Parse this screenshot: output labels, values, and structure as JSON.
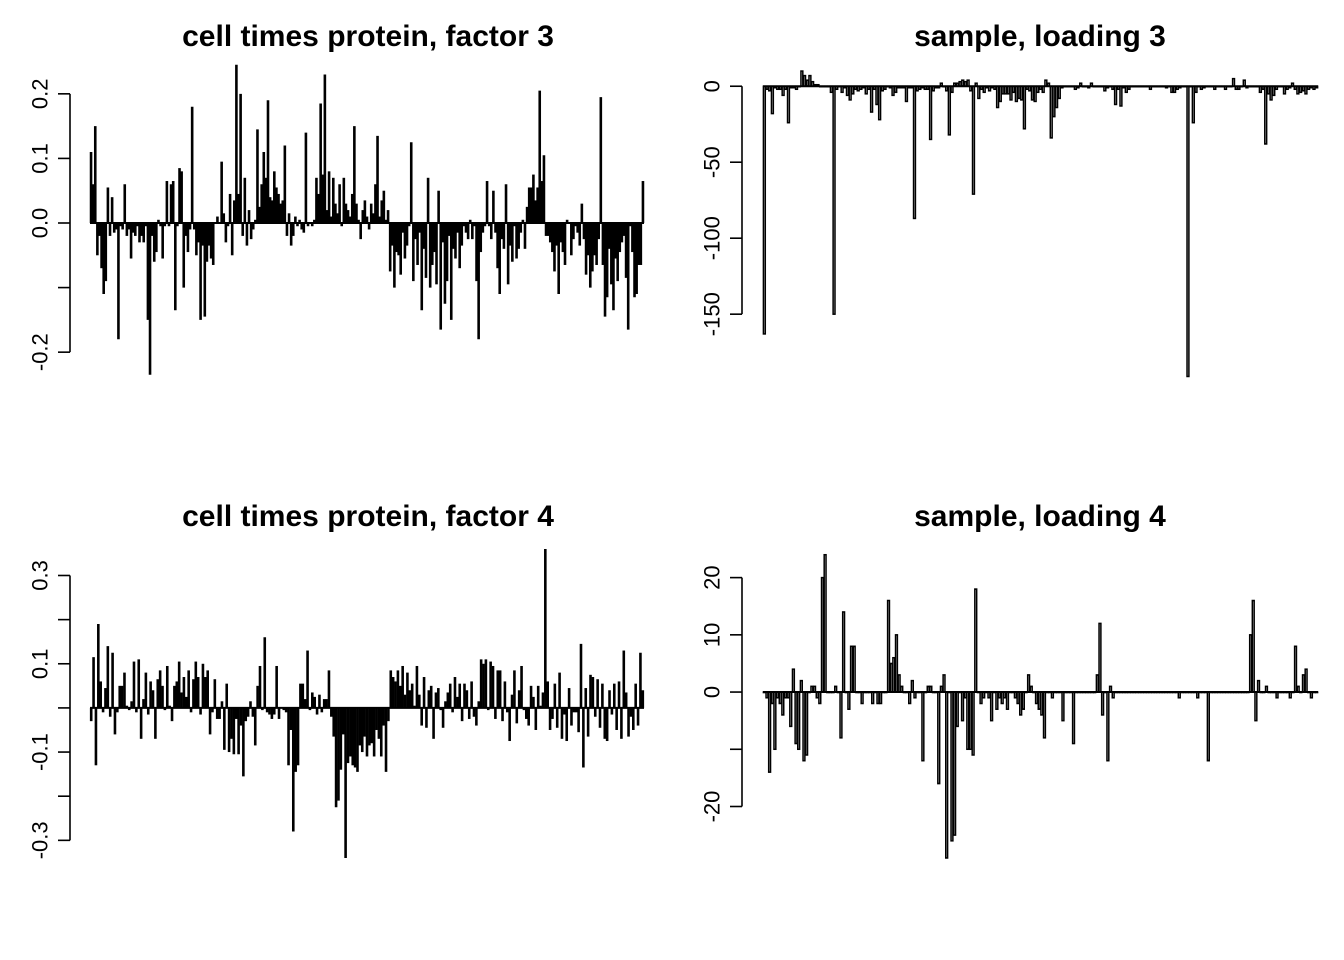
{
  "chart_data": [
    {
      "type": "bar",
      "title": "cell times protein, factor 3",
      "xlabel": "",
      "ylabel": "",
      "ylim": [
        -0.24,
        0.24
      ],
      "yticks": [
        -0.2,
        -0.1,
        0.0,
        0.1,
        0.2
      ],
      "ytick_labels": [
        "-0.2",
        "",
        "0.0",
        "0.1",
        "0.2"
      ],
      "grid": false,
      "values": [
        0.11,
        0.06,
        0.15,
        -0.05,
        -0.02,
        -0.07,
        -0.11,
        -0.09,
        0.055,
        -0.02,
        0.04,
        -0.015,
        -0.01,
        -0.18,
        -0.005,
        -0.01,
        0.06,
        -0.02,
        -0.01,
        -0.055,
        -0.015,
        -0.02,
        -0.005,
        -0.03,
        -0.02,
        -0.03,
        -0.005,
        -0.15,
        -0.235,
        -0.02,
        -0.06,
        -0.045,
        0.005,
        -0.005,
        -0.055,
        -0.005,
        0.065,
        -0.005,
        0.06,
        0.065,
        -0.135,
        -0.005,
        0.085,
        0.08,
        -0.1,
        -0.02,
        -0.045,
        -0.01,
        0.18,
        -0.01,
        -0.05,
        -0.03,
        -0.15,
        -0.035,
        -0.145,
        -0.06,
        -0.035,
        -0.055,
        -0.065,
        0.0,
        0.01,
        0.0,
        0.095,
        0.015,
        -0.03,
        -0.005,
        0.045,
        -0.05,
        0.035,
        0.245,
        0.045,
        0.2,
        -0.02,
        0.07,
        -0.035,
        0.02,
        -0.025,
        -0.01,
        0.005,
        0.145,
        0.025,
        0.06,
        0.11,
        0.07,
        0.19,
        0.04,
        0.035,
        0.08,
        0.055,
        0.045,
        0.03,
        0.035,
        0.12,
        -0.02,
        0.015,
        -0.035,
        -0.02,
        0.01,
        -0.005,
        0.005,
        -0.01,
        -0.015,
        0.14,
        -0.005,
        0.0,
        -0.005,
        0.005,
        0.07,
        0.045,
        0.185,
        0.075,
        0.23,
        0.02,
        0.08,
        0.01,
        0.07,
        0.03,
        0.015,
        0.06,
        -0.005,
        0.07,
        0.03,
        0.02,
        0.01,
        0.045,
        0.15,
        0.03,
        0.005,
        -0.025,
        0.02,
        0.035,
        0.01,
        -0.01,
        0.03,
        0.015,
        0.06,
        0.135,
        0.01,
        0.035,
        0.05,
        0.005,
        0.02,
        -0.075,
        -0.035,
        -0.1,
        -0.045,
        -0.05,
        -0.08,
        -0.015,
        -0.055,
        -0.035,
        -0.005,
        0.125,
        -0.09,
        -0.025,
        -0.065,
        -0.015,
        -0.135,
        -0.04,
        -0.085,
        0.07,
        -0.1,
        -0.065,
        -0.045,
        -0.095,
        0.05,
        -0.165,
        -0.03,
        -0.125,
        -0.09,
        -0.02,
        -0.15,
        -0.04,
        -0.055,
        -0.015,
        -0.07,
        -0.035,
        -0.005,
        -0.015,
        -0.025,
        0.005,
        -0.025,
        -0.005,
        -0.09,
        -0.18,
        -0.045,
        -0.015,
        -0.005,
        0.065,
        -0.005,
        -0.025,
        0.05,
        -0.015,
        -0.07,
        -0.11,
        -0.025,
        -0.04,
        0.06,
        -0.095,
        -0.035,
        -0.06,
        -0.005,
        -0.055,
        -0.04,
        -0.015,
        0.005,
        -0.04,
        0.025,
        0.055,
        0.055,
        0.075,
        0.035,
        0.055,
        0.205,
        0.065,
        0.105,
        -0.02,
        -0.02,
        -0.03,
        -0.045,
        -0.075,
        -0.035,
        -0.11,
        -0.03,
        -0.045,
        -0.065,
        0.005,
        0.0,
        -0.05,
        -0.025,
        -0.005,
        -0.015,
        -0.035,
        0.03,
        -0.025,
        -0.08,
        -0.05,
        -0.1,
        -0.075,
        -0.05,
        -0.065,
        -0.025,
        0.195,
        -0.065,
        -0.145,
        -0.115,
        -0.04,
        -0.095,
        -0.135,
        -0.055,
        -0.09,
        -0.045,
        -0.03,
        -0.02,
        -0.085,
        -0.165,
        -0.005,
        -0.045,
        -0.115,
        -0.11,
        -0.065,
        -0.065,
        0.065
      ]
    },
    {
      "type": "bar",
      "title": "sample, loading 3",
      "xlabel": "",
      "ylabel": "",
      "ylim": [
        -192,
        12
      ],
      "yticks": [
        -150,
        -100,
        -50,
        0
      ],
      "ytick_labels": [
        "-150",
        "-100",
        "-50",
        "0"
      ],
      "grid": false,
      "values": [
        -163,
        -2,
        -3,
        -18,
        -1,
        -2,
        -2,
        -6,
        -2,
        -24,
        -1,
        -1,
        -2,
        0,
        10,
        7,
        4,
        7,
        3,
        1,
        1,
        0,
        0,
        0,
        0,
        -4,
        -150,
        -2,
        0,
        -4,
        -1,
        -6,
        -9,
        -5,
        -2,
        -3,
        -2,
        -1,
        -5,
        -2,
        -17,
        -2,
        -12,
        -22,
        -3,
        -2,
        0,
        -1,
        -6,
        -4,
        -1,
        -1,
        -1,
        -10,
        -1,
        -1,
        -87,
        -3,
        -2,
        -1,
        -2,
        -2,
        -35,
        -3,
        -1,
        -1,
        2,
        0,
        -3,
        -32,
        -4,
        2,
        2,
        3,
        4,
        3,
        4,
        -3,
        -71,
        2,
        -8,
        -2,
        -4,
        -1,
        -3,
        -1,
        -2,
        -14,
        -10,
        -5,
        -5,
        -5,
        -9,
        -4,
        -10,
        -8,
        -9,
        -28,
        -2,
        -3,
        -9,
        -10,
        -4,
        -2,
        -4,
        4,
        2,
        -34,
        -20,
        -14,
        -8,
        -1,
        0,
        0,
        0,
        0,
        -2,
        -1,
        2,
        0,
        0,
        -1,
        2,
        0,
        0,
        0,
        0,
        -3,
        -1,
        0,
        -2,
        -12,
        -2,
        -13,
        -1,
        -4,
        -2,
        0,
        0,
        0,
        0,
        0,
        0,
        0,
        -2,
        0,
        0,
        0,
        0,
        0,
        -1,
        0,
        -4,
        -4,
        -2,
        -1,
        0,
        0,
        -191,
        0,
        -24,
        -4,
        0,
        -2,
        -1,
        0,
        0,
        0,
        -2,
        0,
        0,
        0,
        -2,
        0,
        0,
        5,
        -2,
        -2,
        0,
        4,
        -1,
        0,
        0,
        0,
        0,
        -4,
        -2,
        -38,
        -5,
        -9,
        -6,
        -2,
        0,
        0,
        -5,
        -2,
        -1,
        2,
        -2,
        -5,
        -4,
        -3,
        -5,
        -2,
        -1,
        -2,
        -1
      ]
    },
    {
      "type": "bar",
      "title": "cell times protein, factor 4",
      "xlabel": "",
      "ylabel": "",
      "ylim": [
        -0.34,
        0.36
      ],
      "yticks": [
        -0.3,
        -0.2,
        -0.1,
        0.0,
        0.1,
        0.2,
        0.3
      ],
      "ytick_labels": [
        "-0.3",
        "",
        "-0.1",
        "",
        "0.1",
        "",
        "0.3"
      ],
      "grid": false,
      "values": [
        -0.03,
        0.115,
        -0.13,
        0.19,
        0.06,
        -0.01,
        0.045,
        0.14,
        -0.02,
        0.125,
        -0.06,
        -0.01,
        0.05,
        0.05,
        0.08,
        0.005,
        -0.005,
        0.015,
        0.105,
        -0.01,
        0.11,
        -0.07,
        0.02,
        0.08,
        -0.015,
        0.06,
        0.04,
        -0.07,
        0.065,
        0.085,
        0.05,
        -0.005,
        0.095,
        0.005,
        -0.03,
        0.05,
        0.06,
        0.105,
        0.035,
        0.07,
        0.025,
        0.085,
        -0.01,
        0.065,
        0.105,
        0.07,
        -0.015,
        0.1,
        0.07,
        0.085,
        -0.06,
        -0.01,
        0.065,
        -0.025,
        -0.025,
        0.015,
        -0.095,
        0.055,
        -0.1,
        -0.07,
        -0.105,
        -0.025,
        -0.105,
        -0.04,
        -0.155,
        -0.03,
        -0.02,
        0.015,
        -0.02,
        -0.085,
        0.05,
        0.095,
        -0.005,
        0.16,
        -0.01,
        -0.015,
        -0.025,
        -0.015,
        0.095,
        -0.025,
        0.0,
        -0.005,
        -0.01,
        -0.13,
        -0.05,
        -0.28,
        -0.145,
        -0.13,
        0.055,
        0.055,
        0.02,
        0.13,
        -0.005,
        0.035,
        0.025,
        -0.015,
        0.03,
        -0.01,
        0.02,
        0.02,
        0.085,
        -0.02,
        -0.065,
        -0.225,
        -0.21,
        -0.14,
        -0.06,
        -0.34,
        -0.125,
        -0.11,
        -0.13,
        -0.135,
        -0.145,
        -0.085,
        -0.1,
        -0.065,
        -0.11,
        -0.085,
        -0.08,
        -0.11,
        -0.05,
        -0.07,
        -0.11,
        -0.04,
        -0.145,
        -0.03,
        0.085,
        0.07,
        0.06,
        0.085,
        0.05,
        0.095,
        0.03,
        0.08,
        0.04,
        0.055,
        0.005,
        0.095,
        0.03,
        -0.04,
        0.07,
        -0.045,
        0.04,
        0.05,
        -0.07,
        0.035,
        0.045,
        -0.005,
        -0.045,
        0.015,
        0.035,
        0.055,
        -0.01,
        0.07,
        0.025,
        0.055,
        -0.03,
        0.055,
        0.04,
        -0.025,
        0.06,
        -0.02,
        -0.04,
        0.015,
        0.11,
        0.1,
        0.11,
        -0.005,
        0.105,
        0.095,
        -0.025,
        0.085,
        0.085,
        -0.03,
        0.06,
        -0.01,
        -0.075,
        0.03,
        0.085,
        -0.035,
        0.04,
        0.095,
        -0.005,
        -0.025,
        -0.04,
        0.05,
        0.025,
        -0.05,
        0.05,
        0.005,
        0.035,
        0.36,
        0.06,
        -0.05,
        -0.025,
        0.055,
        -0.045,
        0.08,
        -0.07,
        -0.015,
        -0.075,
        0.045,
        -0.04,
        -0.01,
        -0.01,
        -0.055,
        0.145,
        -0.135,
        0.045,
        -0.065,
        0.075,
        0.07,
        -0.02,
        0.065,
        -0.045,
        0.055,
        -0.07,
        -0.075,
        0.04,
        -0.015,
        0.055,
        -0.05,
        0.06,
        -0.07,
        0.13,
        0.035,
        -0.065,
        -0.02,
        -0.05,
        0.055,
        -0.04,
        0.125,
        0.04
      ]
    },
    {
      "type": "bar",
      "title": "sample, loading 4",
      "xlabel": "",
      "ylabel": "",
      "ylim": [
        -29,
        25
      ],
      "yticks": [
        -20,
        -10,
        0,
        10,
        20
      ],
      "ytick_labels": [
        "-20",
        "",
        "0",
        "10",
        "20"
      ],
      "grid": false,
      "values": [
        0,
        -1,
        -14,
        -2,
        -10,
        -1,
        -2,
        -4,
        -1,
        -1,
        -6,
        4,
        -9,
        -10,
        2,
        -12,
        -11,
        0,
        1,
        1,
        -1,
        -2,
        20,
        24,
        0,
        0,
        0,
        1,
        0,
        -8,
        14,
        0,
        -3,
        8,
        8,
        0,
        0,
        -2,
        0,
        0,
        0,
        -2,
        0,
        -2,
        -2,
        0,
        0,
        16,
        5,
        6,
        10,
        3,
        1,
        0,
        0,
        -2,
        2,
        -1,
        0,
        0,
        -12,
        0,
        1,
        1,
        0,
        0,
        -16,
        1,
        3,
        -29,
        0,
        -26,
        -25,
        -6,
        0,
        -5,
        -1,
        -10,
        -10,
        -11,
        18,
        0,
        -2,
        -1,
        0,
        -1,
        -5,
        0,
        -3,
        -1,
        -2,
        -1,
        -3,
        0,
        0,
        -1,
        -2,
        -4,
        -3,
        0,
        3,
        1,
        0,
        -2,
        -3,
        -4,
        -8,
        0,
        0,
        -1,
        0,
        0,
        0,
        -5,
        0,
        0,
        0,
        -9,
        0,
        0,
        0,
        0,
        0,
        0,
        0,
        0,
        3,
        12,
        -4,
        0,
        -12,
        1,
        -1,
        0,
        0,
        0,
        0,
        0,
        0,
        0,
        0,
        0,
        0,
        0,
        0,
        0,
        0,
        0,
        0,
        0,
        0,
        0,
        0,
        0,
        0,
        0,
        0,
        -1,
        0,
        0,
        0,
        0,
        0,
        0,
        -1,
        0,
        0,
        0,
        -12,
        0,
        0,
        0,
        0,
        0,
        0,
        0,
        0,
        0,
        0,
        0,
        0,
        0,
        0,
        0,
        10,
        16,
        -5,
        2,
        0,
        0,
        1,
        0,
        0,
        0,
        -1,
        0,
        0,
        0,
        0,
        -1,
        0,
        8,
        1,
        0,
        3,
        4,
        0,
        -1,
        0,
        0
      ]
    }
  ]
}
